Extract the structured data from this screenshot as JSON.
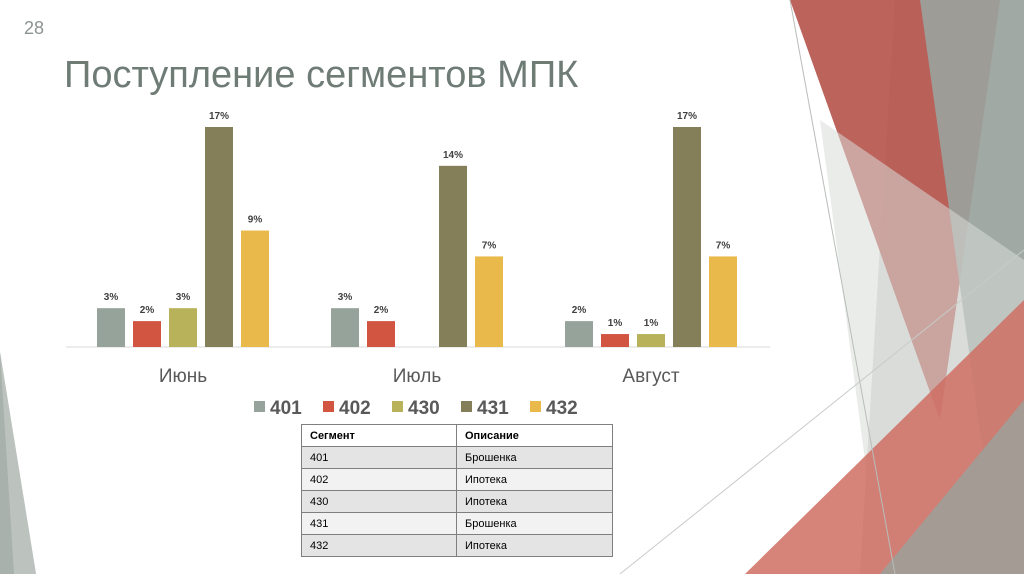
{
  "slide": {
    "number": "28",
    "title": "Поступление сегментов МПК"
  },
  "colors": {
    "title": "#6f7c76",
    "deco_red": "#b5524a",
    "deco_gray": "#9aa39d",
    "deco_light": "#d9ddd9"
  },
  "chart_data": {
    "type": "bar",
    "categories": [
      "Июнь",
      "Июль",
      "Август"
    ],
    "series": [
      {
        "name": "401",
        "color": "#95a39b",
        "values": [
          3,
          3,
          2
        ],
        "labels": [
          "3%",
          "3%",
          "2%"
        ]
      },
      {
        "name": "402",
        "color": "#d15541",
        "values": [
          2,
          2,
          1
        ],
        "labels": [
          "2%",
          "2%",
          "1%"
        ]
      },
      {
        "name": "430",
        "color": "#b8b35b",
        "values": [
          3,
          null,
          1
        ],
        "labels": [
          "3%",
          "",
          "1%"
        ]
      },
      {
        "name": "431",
        "color": "#847e59",
        "values": [
          17,
          14,
          17
        ],
        "labels": [
          "17%",
          "14%",
          "17%"
        ]
      },
      {
        "name": "432",
        "color": "#e9b94c",
        "values": [
          9,
          7,
          7
        ],
        "labels": [
          "9%",
          "7%",
          "7%"
        ]
      }
    ],
    "unit": "%",
    "ylim": [
      0,
      17
    ],
    "grid": false,
    "legend": "bottom"
  },
  "table": {
    "headers": [
      "Сегмент",
      "Описание"
    ],
    "rows": [
      [
        "401",
        "Брошенка"
      ],
      [
        "402",
        "Ипотека"
      ],
      [
        "430",
        "Ипотека"
      ],
      [
        "431",
        "Брошенка"
      ],
      [
        "432",
        "Ипотека"
      ]
    ]
  }
}
